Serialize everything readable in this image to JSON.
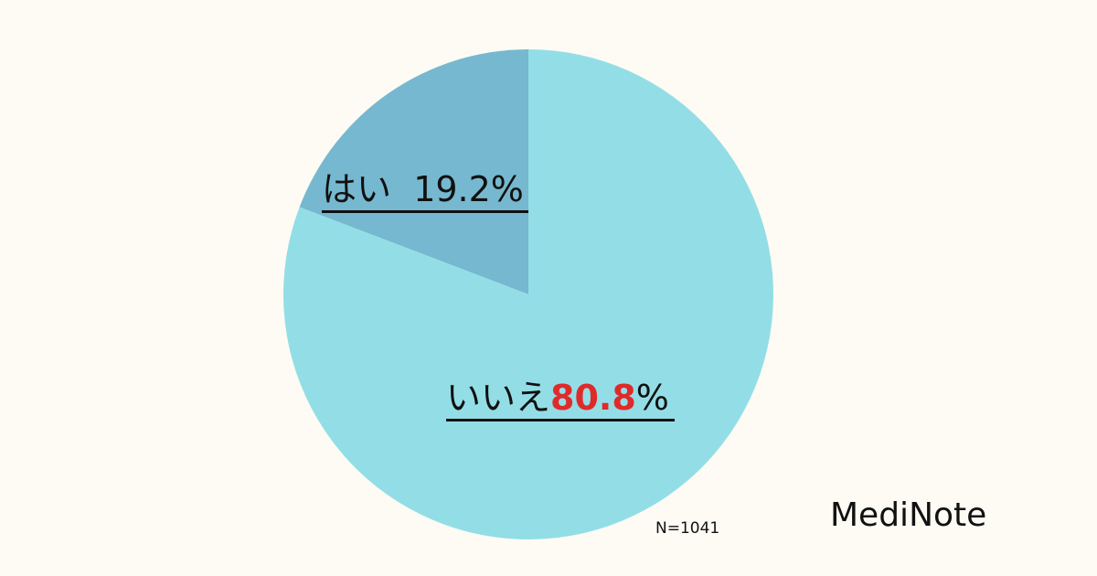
{
  "chart_data": {
    "type": "pie",
    "start": "12 o'clock",
    "direction": "counterclockwise",
    "slices": [
      {
        "label": "はい",
        "value": 19.2,
        "value_text": "19.2",
        "unit": "%",
        "color": "#76b8cf"
      },
      {
        "label": "いいえ",
        "value": 80.8,
        "value_text": "80.8",
        "unit": "%",
        "color": "#93dee6",
        "value_color": "#e02a2a"
      }
    ],
    "note": "N=1041"
  },
  "brand": "MediNote",
  "background": "#fdfbf4"
}
